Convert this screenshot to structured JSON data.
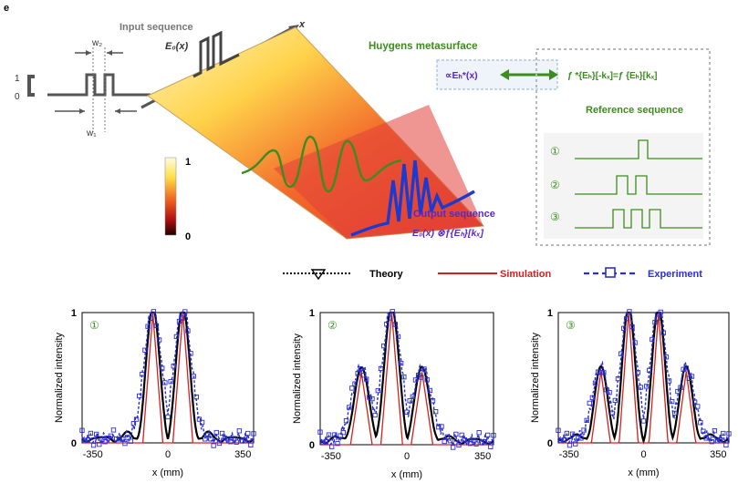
{
  "panel_label": "e",
  "top": {
    "input_title": "Input sequence",
    "input_func": "E₀(x)",
    "axis_x": "x",
    "w2": "w₂",
    "w1": "w₁",
    "tick_1": "1",
    "tick_0": "0",
    "huygens_title": "Huygens metasurface",
    "huygens_formula": "∝Eₕ*(x)",
    "huygens_formula_right": "ƒ *{Eₕ}[-kₓ]=ƒ {Eₕ}[kₓ]",
    "colorbar_max": "1",
    "colorbar_min": "0",
    "reference_title": "Reference sequence",
    "ref_labels": [
      "①",
      "②",
      "③"
    ],
    "output_title": "Output sequence",
    "output_formula": "E₀(x) ⊗ƒ{Eₕ}[kₓ]"
  },
  "legend": {
    "items": [
      {
        "label": "Theory",
        "color": "#000000"
      },
      {
        "label": "Simulation",
        "color": "#d62020"
      },
      {
        "label": "Experiment",
        "color": "#2a2fd0"
      }
    ]
  },
  "colors": {
    "theory": "#000000",
    "simulation": "#d62020",
    "experiment": "#2a2fd0",
    "green": "#3c8c1e",
    "purple": "#5a28c8",
    "gray": "#7a7a7a"
  },
  "chart_data": [
    {
      "type": "line",
      "marker": "①",
      "ylabel": "Normalized intensity",
      "xlabel": "x (mm)",
      "xlim": [
        -400,
        400
      ],
      "ylim": [
        0,
        1
      ],
      "xticks": [
        "-350",
        "0",
        "350"
      ],
      "yticks": [
        "0",
        "1"
      ],
      "peaks": [
        {
          "center": -70,
          "width": 42,
          "height": 1.0
        },
        {
          "center": 70,
          "width": 42,
          "height": 1.0
        }
      ]
    },
    {
      "type": "line",
      "marker": "②",
      "ylabel": "Normalized intensity",
      "xlabel": "x (mm)",
      "xlim": [
        -400,
        400
      ],
      "ylim": [
        0,
        1
      ],
      "xticks": [
        "-350",
        "0",
        "350"
      ],
      "yticks": [
        "0",
        "1"
      ],
      "peaks": [
        {
          "center": -210,
          "width": 45,
          "height": 0.55
        },
        {
          "center": -70,
          "width": 45,
          "height": 1.0
        },
        {
          "center": 70,
          "width": 45,
          "height": 0.55
        }
      ]
    },
    {
      "type": "line",
      "marker": "③",
      "ylabel": "Normalized intensity",
      "xlabel": "x (mm)",
      "xlim": [
        -400,
        400
      ],
      "ylim": [
        0,
        1
      ],
      "xticks": [
        "-350",
        "0",
        "350"
      ],
      "yticks": [
        "0",
        "1"
      ],
      "peaks": [
        {
          "center": -200,
          "width": 40,
          "height": 0.55
        },
        {
          "center": -70,
          "width": 40,
          "height": 1.0
        },
        {
          "center": 70,
          "width": 40,
          "height": 1.0
        },
        {
          "center": 200,
          "width": 40,
          "height": 0.55
        }
      ]
    }
  ]
}
